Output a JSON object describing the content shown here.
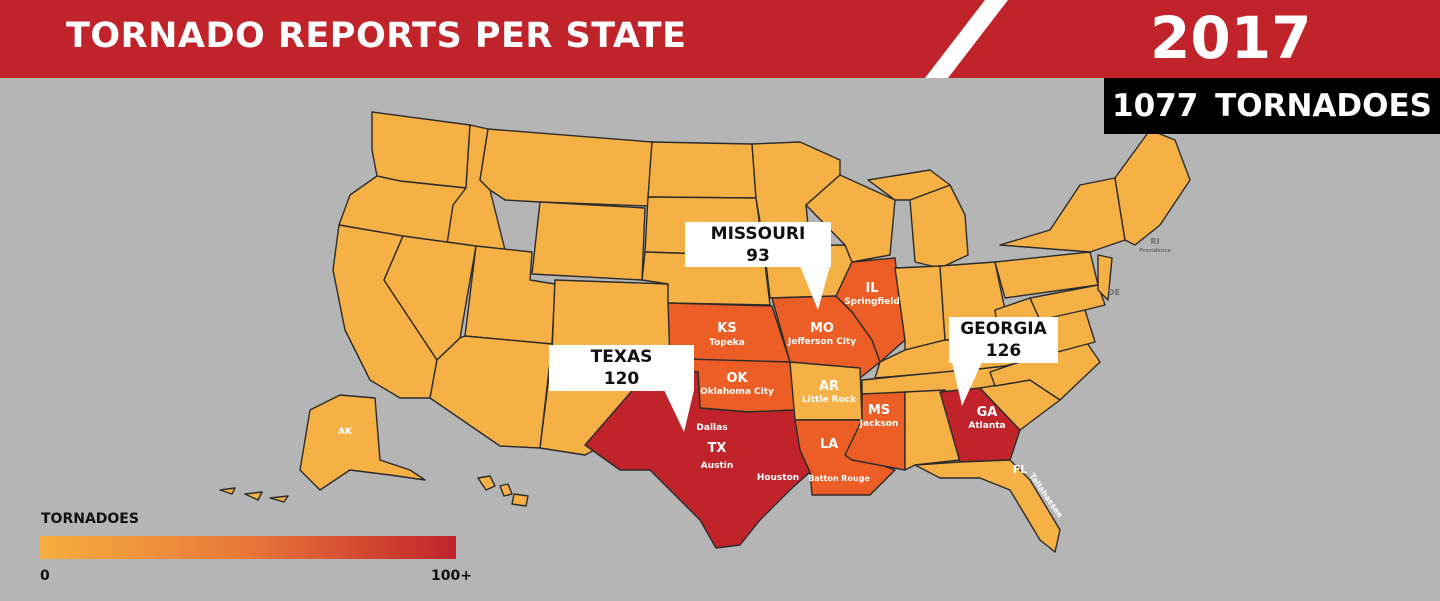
{
  "header": {
    "title": "TORNADO REPORTS PER STATE",
    "year": "2017",
    "total": "1077  TORNADOES"
  },
  "colors": {
    "header_red": "#c1232b",
    "low": "#f6b146",
    "mid": "#ec5e25",
    "high": "#c1232b",
    "background": "#b5b5b5"
  },
  "callouts": [
    {
      "state": "MISSOURI",
      "count": "93"
    },
    {
      "state": "TEXAS",
      "count": "120"
    },
    {
      "state": "GEORGIA",
      "count": "126"
    }
  ],
  "states": [
    {
      "abbr": "KS",
      "city": "Topeka",
      "tier": "mid"
    },
    {
      "abbr": "OK",
      "city": "Oklahoma City",
      "tier": "mid"
    },
    {
      "abbr": "MO",
      "city": "Jefferson City",
      "tier": "mid"
    },
    {
      "abbr": "IL",
      "city": "Springfield",
      "tier": "mid"
    },
    {
      "abbr": "AR",
      "city": "Little Rock",
      "tier": "low"
    },
    {
      "abbr": "LA",
      "city": "Batton Rouge",
      "tier": "mid"
    },
    {
      "abbr": "MS",
      "city": "Jackson",
      "tier": "mid"
    },
    {
      "abbr": "TX",
      "city": "Austin",
      "tier": "high"
    },
    {
      "abbr": "GA",
      "city": "Atlanta",
      "tier": "high"
    },
    {
      "abbr": "FL",
      "city": "Tallahassee",
      "tier": "low"
    },
    {
      "abbr": "AK",
      "city": "",
      "tier": "low"
    },
    {
      "abbr": "RI",
      "city": "Providence",
      "tier": "low"
    },
    {
      "abbr": "DE",
      "city": "",
      "tier": "low"
    }
  ],
  "other_cities": [
    "Dallas",
    "Houston"
  ],
  "legend": {
    "title": "TORNADOES",
    "min": "0",
    "max": "100+"
  }
}
